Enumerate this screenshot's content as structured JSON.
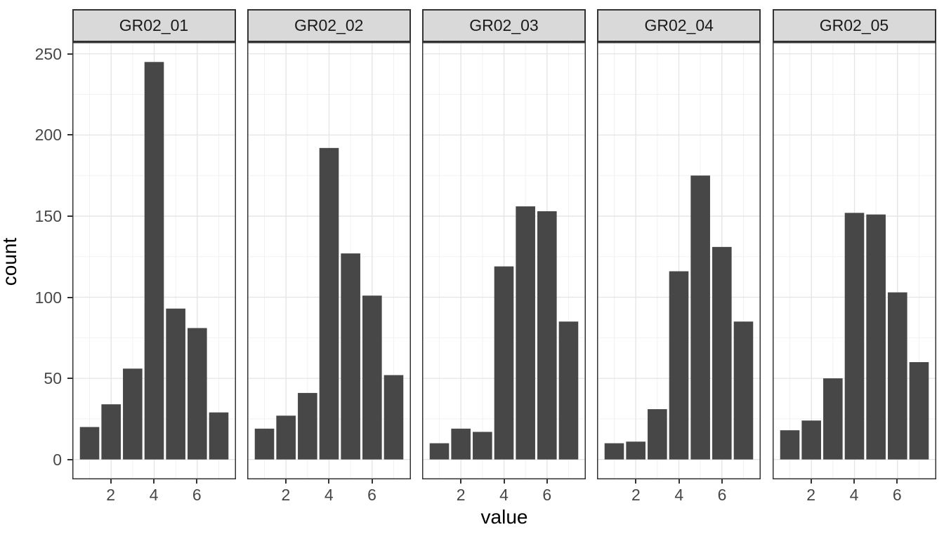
{
  "figure": {
    "background": "#ffffff"
  },
  "chart_data": {
    "type": "bar",
    "subtype": "faceted-histogram",
    "title": "",
    "xlabel": "value",
    "ylabel": "count",
    "categories": [
      1,
      2,
      3,
      4,
      5,
      6,
      7
    ],
    "series": [
      {
        "name": "GR02_01",
        "values": [
          20,
          34,
          56,
          245,
          93,
          81,
          29
        ]
      },
      {
        "name": "GR02_02",
        "values": [
          19,
          27,
          41,
          192,
          127,
          101,
          52
        ]
      },
      {
        "name": "GR02_03",
        "values": [
          10,
          19,
          17,
          119,
          156,
          153,
          85
        ]
      },
      {
        "name": "GR02_04",
        "values": [
          10,
          11,
          31,
          116,
          175,
          131,
          85
        ]
      },
      {
        "name": "GR02_05",
        "values": [
          18,
          24,
          50,
          152,
          151,
          103,
          60
        ]
      }
    ],
    "facet_labels": [
      "GR02_01",
      "GR02_02",
      "GR02_03",
      "GR02_04",
      "GR02_05"
    ],
    "x_ticks": [
      2,
      4,
      6
    ],
    "y_ticks": [
      0,
      50,
      100,
      150,
      200,
      250
    ],
    "x_minor_gridlines": [
      1,
      3,
      5,
      7
    ],
    "y_minor_gridlines": [
      25,
      75,
      125,
      175,
      225
    ],
    "xlim": [
      0.2,
      7.8
    ],
    "ylim": [
      -12.25,
      257.25
    ],
    "bar_width": 0.9,
    "grid": "on",
    "legend": "none",
    "colors": {
      "bar_fill": "#474747",
      "panel_background": "#ffffff",
      "panel_border": "#333333",
      "strip_background": "#d9d9d9",
      "strip_border": "#333333",
      "grid_major": "#e4e4e4",
      "grid_minor": "#f1f1f1",
      "tick_label": "#474747",
      "axis_title": "#000000",
      "tick_mark": "#333333"
    }
  }
}
